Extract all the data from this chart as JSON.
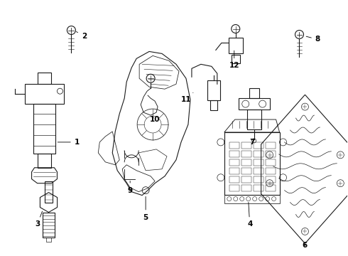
{
  "background_color": "#ffffff",
  "line_color": "#1a1a1a",
  "fig_width": 4.9,
  "fig_height": 3.6,
  "dpi": 100,
  "label_fontsize": 7.5,
  "lw": 0.8
}
